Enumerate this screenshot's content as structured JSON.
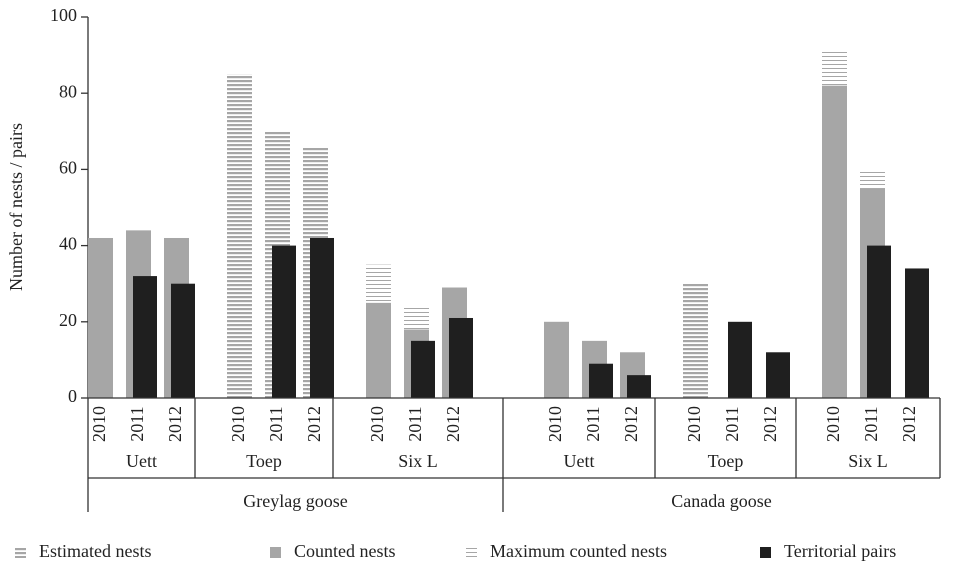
{
  "chart_data": {
    "type": "bar",
    "y_label": "Number of nests / pairs",
    "groups": [
      "Greylag goose",
      "Canada goose"
    ],
    "subgroups": [
      "Uett",
      "Toep",
      "Six L",
      "Uett",
      "Toep",
      "Six L"
    ],
    "categories": [
      "2010",
      "2011",
      "2012",
      "2010",
      "2011",
      "2012",
      "2010",
      "2011",
      "2012",
      "2010",
      "2011",
      "2012",
      "2010",
      "2011",
      "2012",
      "2010",
      "2011",
      "2012"
    ],
    "ylim": [
      0,
      100
    ],
    "yticks": [
      0,
      20,
      40,
      60,
      80,
      100
    ],
    "series": [
      {
        "name": "Estimated nests",
        "color": "#a6a6a6",
        "style": "striped",
        "values": [
          null,
          null,
          null,
          85,
          70,
          66,
          null,
          null,
          null,
          null,
          null,
          null,
          30,
          null,
          null,
          null,
          null,
          null
        ]
      },
      {
        "name": "Counted nests",
        "color": "#a6a6a6",
        "style": "solid",
        "values": [
          42,
          44,
          42,
          null,
          null,
          null,
          25,
          18,
          29,
          20,
          15,
          12,
          null,
          null,
          null,
          82,
          55,
          null
        ]
      },
      {
        "name": "Maximum counted nests",
        "color": "#a6a6a6",
        "style": "lined",
        "values": [
          null,
          null,
          null,
          null,
          null,
          null,
          35,
          24,
          null,
          null,
          null,
          null,
          null,
          null,
          null,
          91,
          60,
          null
        ]
      },
      {
        "name": "Territorial pairs",
        "color": "#1f1f1f",
        "style": "solid",
        "values": [
          null,
          32,
          30,
          null,
          40,
          42,
          null,
          15,
          21,
          null,
          9,
          6,
          null,
          20,
          12,
          null,
          40,
          34
        ]
      }
    ]
  }
}
